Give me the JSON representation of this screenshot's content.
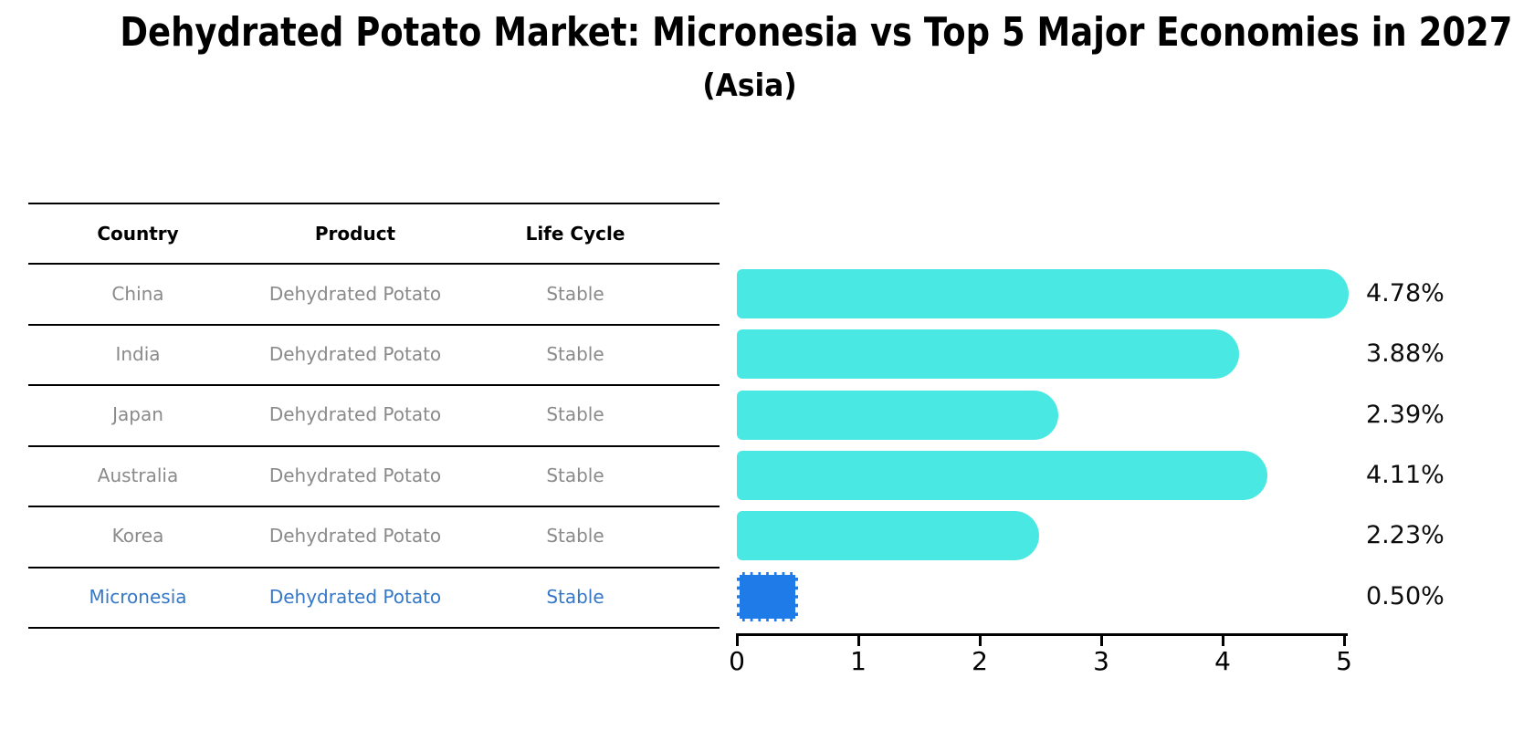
{
  "title": "Dehydrated Potato Market: Micronesia vs Top 5 Major Economies in 2027",
  "subtitle": "(Asia)",
  "table": {
    "headers": [
      "Country",
      "Product",
      "Life Cycle"
    ],
    "rows": [
      {
        "country": "China",
        "product": "Dehydrated Potato",
        "life_cycle": "Stable"
      },
      {
        "country": "India",
        "product": "Dehydrated Potato",
        "life_cycle": "Stable"
      },
      {
        "country": "Japan",
        "product": "Dehydrated Potato",
        "life_cycle": "Stable"
      },
      {
        "country": "Australia",
        "product": "Dehydrated Potato",
        "life_cycle": "Stable"
      },
      {
        "country": "Korea",
        "product": "Dehydrated Potato",
        "life_cycle": "Stable"
      },
      {
        "country": "Micronesia",
        "product": "Dehydrated Potato",
        "life_cycle": "Stable"
      }
    ]
  },
  "chart_data": {
    "type": "bar",
    "orientation": "horizontal",
    "title": "Dehydrated Potato Market: Micronesia vs Top 5 Major Economies in 2027",
    "subtitle": "(Asia)",
    "categories": [
      "China",
      "India",
      "Japan",
      "Australia",
      "Korea",
      "Micronesia"
    ],
    "values": [
      4.78,
      3.88,
      2.39,
      4.11,
      2.23,
      0.5
    ],
    "value_labels": [
      "4.78%",
      "3.88%",
      "2.39%",
      "4.11%",
      "2.23%",
      "0.50%"
    ],
    "xlim": [
      0,
      5
    ],
    "xticks": [
      "0",
      "1",
      "2",
      "3",
      "4",
      "5"
    ],
    "grid": false,
    "legend": "none",
    "bar_color": "#4AE8E2",
    "highlight_bar_color": "#1F7BE8",
    "highlight_index": 5
  },
  "colors": {
    "table_text": "#8a8a8a",
    "header_text": "#000000",
    "highlight_text": "#3578C8",
    "axis": "#000000"
  }
}
